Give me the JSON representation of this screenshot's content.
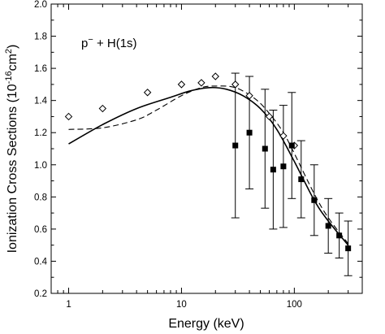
{
  "chart_data": {
    "type": "scatter",
    "title": "",
    "xlabel": "Energy (keV)",
    "ylabel_main": "Ionization Cross Sections (10",
    "ylabel_exp": "-16",
    "ylabel_unit": "cm",
    "ylabel_pow": "2",
    "ylabel_close": ")",
    "x_scale": "log",
    "xlim": [
      0.7,
      400
    ],
    "ylim": [
      0.2,
      2.0
    ],
    "x_ticks": [
      1,
      10,
      100
    ],
    "x_tick_labels": [
      "1",
      "10",
      "100"
    ],
    "y_ticks": [
      0.2,
      0.4,
      0.6,
      0.8,
      1.0,
      1.2,
      1.4,
      1.6,
      1.8,
      2.0
    ],
    "y_tick_labels": [
      "0.2",
      "0.4",
      "0.6",
      "0.8",
      "1.0",
      "1.2",
      "1.4",
      "1.6",
      "1.8",
      "2.0"
    ],
    "grid": false,
    "annotation": {
      "prefix": "p",
      "sup": "−",
      "rest": " + H(1s)"
    },
    "series": [
      {
        "style": "open-diamond",
        "x": [
          1,
          2,
          5,
          10,
          15,
          20,
          30,
          40,
          60,
          80,
          100
        ],
        "y": [
          1.3,
          1.35,
          1.45,
          1.5,
          1.51,
          1.55,
          1.5,
          1.43,
          1.3,
          1.18,
          1.12
        ]
      },
      {
        "style": "filled-square-errorbar",
        "x": [
          30,
          40,
          55,
          65,
          80,
          95,
          115,
          150,
          200,
          250,
          300
        ],
        "y": [
          1.12,
          1.2,
          1.1,
          0.97,
          0.99,
          1.12,
          0.91,
          0.78,
          0.62,
          0.56,
          0.48
        ],
        "err": [
          0.45,
          0.35,
          0.37,
          0.37,
          0.38,
          0.33,
          0.24,
          0.22,
          0.17,
          0.14,
          0.17
        ]
      },
      {
        "style": "solid-line",
        "x": [
          1,
          2,
          4,
          8,
          12,
          18,
          25,
          35,
          50,
          70,
          100,
          150,
          200,
          300
        ],
        "y": [
          1.13,
          1.25,
          1.35,
          1.42,
          1.46,
          1.48,
          1.47,
          1.43,
          1.35,
          1.22,
          1.02,
          0.78,
          0.65,
          0.5
        ]
      },
      {
        "style": "dashed-line",
        "x": [
          1,
          2,
          4,
          6,
          10,
          15,
          20,
          30,
          45,
          60,
          80,
          100,
          150,
          200,
          300
        ],
        "y": [
          1.22,
          1.23,
          1.28,
          1.34,
          1.43,
          1.48,
          1.49,
          1.48,
          1.41,
          1.32,
          1.2,
          1.07,
          0.82,
          0.67,
          0.51
        ]
      }
    ]
  }
}
